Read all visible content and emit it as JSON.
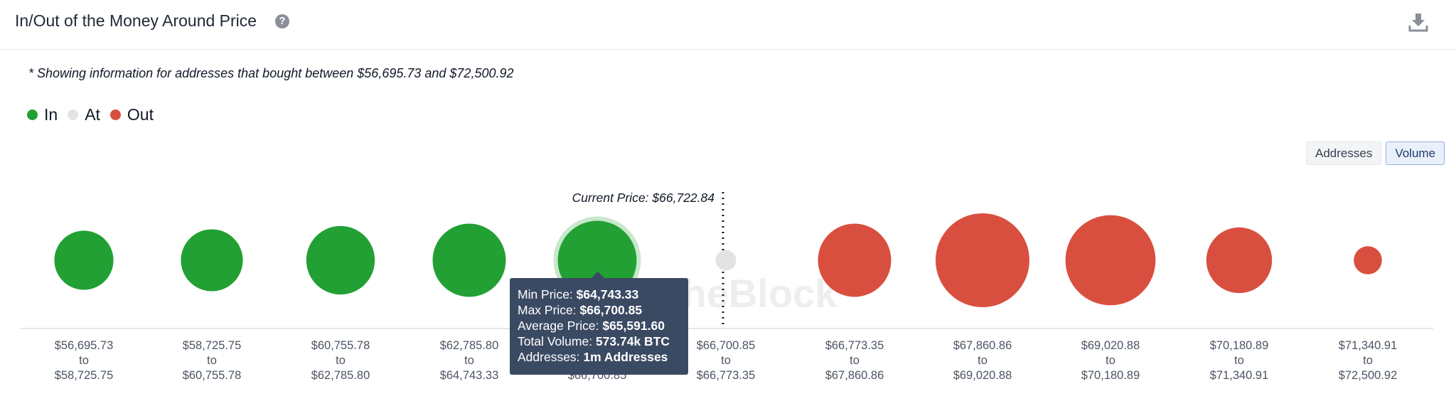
{
  "header": {
    "title": "In/Out of the Money Around Price",
    "help_icon": "question-circle-icon",
    "download_icon": "download-icon"
  },
  "note": "* Showing information for addresses that bought between $56,695.73 and $72,500.92",
  "legend": [
    {
      "label": "In",
      "color": "#22a033"
    },
    {
      "label": "At",
      "color": "#e3e3e3"
    },
    {
      "label": "Out",
      "color": "#d94f3f"
    }
  ],
  "toggle": {
    "addresses_label": "Addresses",
    "volume_label": "Volume",
    "selected": "Volume"
  },
  "watermark": "IntoTheBlock",
  "tooltip": {
    "min_label": "Min Price:",
    "min_value": "$64,743.33",
    "max_label": "Max Price:",
    "max_value": "$66,700.85",
    "avg_label": "Average Price:",
    "avg_value": "$65,591.60",
    "vol_label": "Total Volume:",
    "vol_value": "573.74k BTC",
    "addr_label": "Addresses:",
    "addr_value": "1m Addresses"
  },
  "chart_data": {
    "type": "scatter",
    "measure": "Volume",
    "current_price_label": "Current Price: $66,722.84",
    "current_price": 66722.84,
    "highlighted_index": 4,
    "ranges": [
      {
        "min": "$56,695.73",
        "max": "$58,725.75",
        "status": "In",
        "relative_size": 0.63
      },
      {
        "min": "$58,725.75",
        "max": "$60,755.78",
        "status": "In",
        "relative_size": 0.66
      },
      {
        "min": "$60,755.78",
        "max": "$62,785.80",
        "status": "In",
        "relative_size": 0.73
      },
      {
        "min": "$62,785.80",
        "max": "$64,743.33",
        "status": "In",
        "relative_size": 0.78
      },
      {
        "min": "$64,743.33",
        "max": "$66,700.85",
        "status": "In",
        "relative_size": 0.84,
        "total_volume": "573.74k BTC"
      },
      {
        "min": "$66,700.85",
        "max": "$66,773.35",
        "status": "At",
        "relative_size": 0.22
      },
      {
        "min": "$66,773.35",
        "max": "$67,860.86",
        "status": "Out",
        "relative_size": 0.78
      },
      {
        "min": "$67,860.86",
        "max": "$69,020.88",
        "status": "Out",
        "relative_size": 1.0
      },
      {
        "min": "$69,020.88",
        "max": "$70,180.89",
        "status": "Out",
        "relative_size": 0.96
      },
      {
        "min": "$70,180.89",
        "max": "$71,340.91",
        "status": "Out",
        "relative_size": 0.7
      },
      {
        "min": "$71,340.91",
        "max": "$72,500.92",
        "status": "Out",
        "relative_size": 0.3
      }
    ],
    "to_label": "to"
  }
}
